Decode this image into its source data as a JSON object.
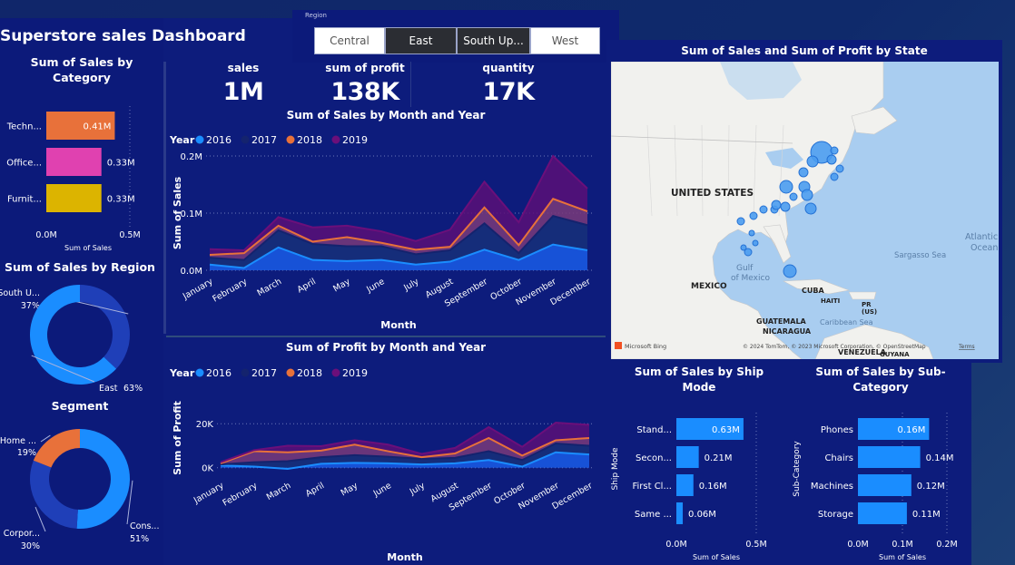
{
  "dashboard": {
    "title": "Superstore sales Dashboard"
  },
  "region_slicer": {
    "label": "Region",
    "options": [
      {
        "label": "Central",
        "selected": false
      },
      {
        "label": "East",
        "selected": true
      },
      {
        "label": "South Up...",
        "selected": true
      },
      {
        "label": "West",
        "selected": false
      }
    ]
  },
  "kpis": [
    {
      "label": "sales",
      "value": "1M"
    },
    {
      "label": "sum of profit",
      "value": "138K"
    },
    {
      "label": "quantity",
      "value": "17K"
    }
  ],
  "category_chart": {
    "title": "Sum of Sales by Category",
    "xlabel": "Sum of Sales",
    "xticks": [
      "0.0M",
      "0.5M"
    ],
    "chart_data": {
      "type": "bar",
      "orientation": "horizontal",
      "categories": [
        "Techn...",
        "Office...",
        "Furnit..."
      ],
      "values": [
        0.41,
        0.33,
        0.33
      ],
      "labels": [
        "0.41M",
        "0.33M",
        "0.33M"
      ],
      "colors": [
        "#e8713a",
        "#e041b0",
        "#dcb400"
      ],
      "xlim": [
        0,
        0.5
      ],
      "xlabel": "Sum of Sales"
    }
  },
  "region_chart": {
    "title": "Sum of Sales by Region",
    "chart_data": {
      "type": "pie",
      "donut": true,
      "categories": [
        "South U...",
        "East"
      ],
      "values": [
        37,
        63
      ],
      "labels": [
        "37%",
        "63%"
      ],
      "colors": [
        "#1f3fb8",
        "#1a8dff"
      ]
    }
  },
  "segment_chart": {
    "title": "Segment",
    "chart_data": {
      "type": "pie",
      "donut": true,
      "categories": [
        "Cons...",
        "Corpor...",
        "Home ..."
      ],
      "values": [
        51,
        30,
        19
      ],
      "labels": [
        "51%",
        "30%",
        "19%"
      ],
      "colors": [
        "#1a8dff",
        "#1f3fb8",
        "#e8713a"
      ]
    }
  },
  "legend_year": {
    "title": "Year",
    "items": [
      {
        "label": "2016",
        "color": "#1a8dff"
      },
      {
        "label": "2017",
        "color": "#14236e"
      },
      {
        "label": "2018",
        "color": "#e8713a"
      },
      {
        "label": "2019",
        "color": "#6b0f7a"
      }
    ]
  },
  "sales_month_chart": {
    "title": "Sum of Sales by Month and Year",
    "xlabel": "Month",
    "ylabel": "Sum of Sales",
    "yticks": [
      "0.0M",
      "0.1M",
      "0.2M"
    ],
    "chart_data": {
      "type": "area",
      "stacked": true,
      "categories": [
        "January",
        "February",
        "March",
        "April",
        "May",
        "June",
        "July",
        "August",
        "September",
        "October",
        "November",
        "December"
      ],
      "ylim": [
        0,
        0.2
      ],
      "series": [
        {
          "name": "2016",
          "values": [
            0.01,
            0.004,
            0.04,
            0.018,
            0.016,
            0.018,
            0.01,
            0.015,
            0.036,
            0.018,
            0.045,
            0.035
          ]
        },
        {
          "name": "2017",
          "values": [
            0.012,
            0.014,
            0.03,
            0.028,
            0.026,
            0.024,
            0.018,
            0.02,
            0.046,
            0.012,
            0.05,
            0.044
          ]
        },
        {
          "name": "2018",
          "values": [
            0.005,
            0.012,
            0.008,
            0.004,
            0.016,
            0.006,
            0.008,
            0.006,
            0.028,
            0.014,
            0.03,
            0.024
          ]
        },
        {
          "name": "2019",
          "values": [
            0.01,
            0.005,
            0.015,
            0.025,
            0.02,
            0.02,
            0.015,
            0.03,
            0.045,
            0.04,
            0.075,
            0.04
          ]
        }
      ]
    }
  },
  "profit_month_chart": {
    "title": "Sum of Profit by Month and Year",
    "xlabel": "Month",
    "ylabel": "Sum of Profit",
    "yticks": [
      "0K",
      "20K"
    ],
    "chart_data": {
      "type": "area",
      "stacked": true,
      "categories": [
        "January",
        "February",
        "March",
        "April",
        "May",
        "June",
        "July",
        "August",
        "September",
        "October",
        "November",
        "December"
      ],
      "ylim": [
        -3,
        30
      ],
      "series": [
        {
          "name": "2016",
          "values": [
            1.0,
            0.5,
            -0.5,
            1.8,
            2.2,
            2.0,
            1.5,
            2.0,
            3.5,
            0.5,
            7.0,
            6.0
          ]
        },
        {
          "name": "2017",
          "values": [
            0.5,
            2.0,
            3.5,
            3.0,
            3.5,
            3.0,
            2.5,
            2.5,
            4.0,
            3.0,
            4.0,
            4.0
          ]
        },
        {
          "name": "2018",
          "values": [
            0.5,
            5.0,
            4.0,
            3.0,
            4.8,
            2.5,
            0.8,
            2.0,
            6.0,
            2.0,
            1.5,
            3.5
          ]
        },
        {
          "name": "2019",
          "values": [
            0.5,
            0.5,
            3.0,
            2.0,
            2.0,
            3.0,
            1.5,
            2.5,
            5.0,
            4.0,
            8.0,
            6.0
          ]
        }
      ]
    }
  },
  "map": {
    "title": "Sum of Sales and Sum of Profit by State",
    "labels": [
      "UNITED STATES",
      "Gulf of Mexico",
      "MEXICO",
      "Sargasso Sea",
      "Atlantic Ocean",
      "CUBA",
      "HAITI",
      "PR (US)",
      "GUATEMALA",
      "NICARAGUA",
      "Caribbean Sea",
      "VENEZUELA",
      "GUYANA"
    ],
    "attribution": "© 2024 TomTom, © 2023 Microsoft Corporation, © OpenStreetMap",
    "terms": "Terms",
    "brand": "Microsoft Bing"
  },
  "shipmode_chart": {
    "title": "Sum of Sales by Ship Mode",
    "xlabel": "Sum of Sales",
    "ylabel": "Ship Mode",
    "xticks": [
      "0.0M",
      "0.5M"
    ],
    "chart_data": {
      "type": "bar",
      "orientation": "horizontal",
      "categories": [
        "Stand...",
        "Secon...",
        "First Cl...",
        "Same ..."
      ],
      "values": [
        0.63,
        0.21,
        0.16,
        0.06
      ],
      "labels": [
        "0.63M",
        "0.21M",
        "0.16M",
        "0.06M"
      ],
      "color": "#1a8dff",
      "xlim": [
        0,
        0.75
      ]
    }
  },
  "subcategory_chart": {
    "title": "Sum of Sales by Sub-Category",
    "xlabel": "Sum of Sales",
    "ylabel": "Sub-Category",
    "xticks": [
      "0.0M",
      "0.1M",
      "0.2M"
    ],
    "chart_data": {
      "type": "bar",
      "orientation": "horizontal",
      "categories": [
        "Phones",
        "Chairs",
        "Machines",
        "Storage"
      ],
      "values": [
        0.16,
        0.14,
        0.12,
        0.11
      ],
      "labels": [
        "0.16M",
        "0.14M",
        "0.12M",
        "0.11M"
      ],
      "color": "#1a8dff",
      "xlim": [
        0,
        0.2
      ]
    }
  }
}
